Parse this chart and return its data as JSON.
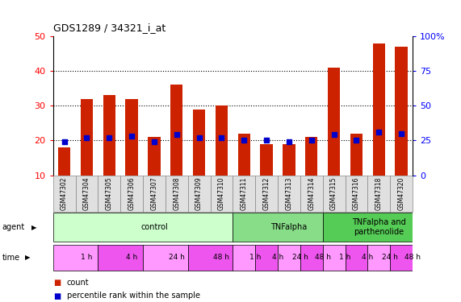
{
  "title": "GDS1289 / 34321_i_at",
  "samples": [
    "GSM47302",
    "GSM47304",
    "GSM47305",
    "GSM47306",
    "GSM47307",
    "GSM47308",
    "GSM47309",
    "GSM47310",
    "GSM47311",
    "GSM47312",
    "GSM47313",
    "GSM47314",
    "GSM47315",
    "GSM47316",
    "GSM47318",
    "GSM47320"
  ],
  "counts": [
    18,
    32,
    33,
    32,
    21,
    36,
    29,
    30,
    22,
    19,
    19,
    21,
    41,
    22,
    48,
    47
  ],
  "percentiles": [
    24,
    27,
    27,
    28,
    24,
    29,
    27,
    27,
    25,
    25,
    24,
    25,
    29,
    25,
    31,
    30
  ],
  "bar_color": "#CC2200",
  "dot_color": "#0000CC",
  "ylim_left": [
    10,
    50
  ],
  "ylim_right": [
    0,
    100
  ],
  "yticks_left": [
    10,
    20,
    30,
    40,
    50
  ],
  "yticks_right": [
    0,
    25,
    50,
    75,
    100
  ],
  "ytick_labels_right": [
    "0",
    "25",
    "50",
    "75",
    "100%"
  ],
  "agent_groups": [
    {
      "label": "control",
      "start": 0,
      "end": 8,
      "color": "#CCFFCC"
    },
    {
      "label": "TNFalpha",
      "start": 8,
      "end": 12,
      "color": "#88DD88"
    },
    {
      "label": "TNFalpha and\nparthenolide",
      "start": 12,
      "end": 16,
      "color": "#55CC55"
    }
  ],
  "time_groups": [
    {
      "label": "1 h",
      "start": 0,
      "end": 2,
      "color": "#FF99FF"
    },
    {
      "label": "4 h",
      "start": 2,
      "end": 4,
      "color": "#EE55EE"
    },
    {
      "label": "24 h",
      "start": 4,
      "end": 6,
      "color": "#FF99FF"
    },
    {
      "label": "48 h",
      "start": 6,
      "end": 8,
      "color": "#EE55EE"
    },
    {
      "label": "1 h",
      "start": 8,
      "end": 9,
      "color": "#FF99FF"
    },
    {
      "label": "4 h",
      "start": 9,
      "end": 10,
      "color": "#EE55EE"
    },
    {
      "label": "24 h",
      "start": 10,
      "end": 11,
      "color": "#FF99FF"
    },
    {
      "label": "48 h",
      "start": 11,
      "end": 12,
      "color": "#EE55EE"
    },
    {
      "label": "1 h",
      "start": 12,
      "end": 13,
      "color": "#FF99FF"
    },
    {
      "label": "4 h",
      "start": 13,
      "end": 14,
      "color": "#EE55EE"
    },
    {
      "label": "24 h",
      "start": 14,
      "end": 15,
      "color": "#FF99FF"
    },
    {
      "label": "48 h",
      "start": 15,
      "end": 16,
      "color": "#EE55EE"
    }
  ],
  "legend_count_color": "#CC2200",
  "legend_dot_color": "#0000CC",
  "background_color": "#FFFFFF",
  "bar_width": 0.55
}
